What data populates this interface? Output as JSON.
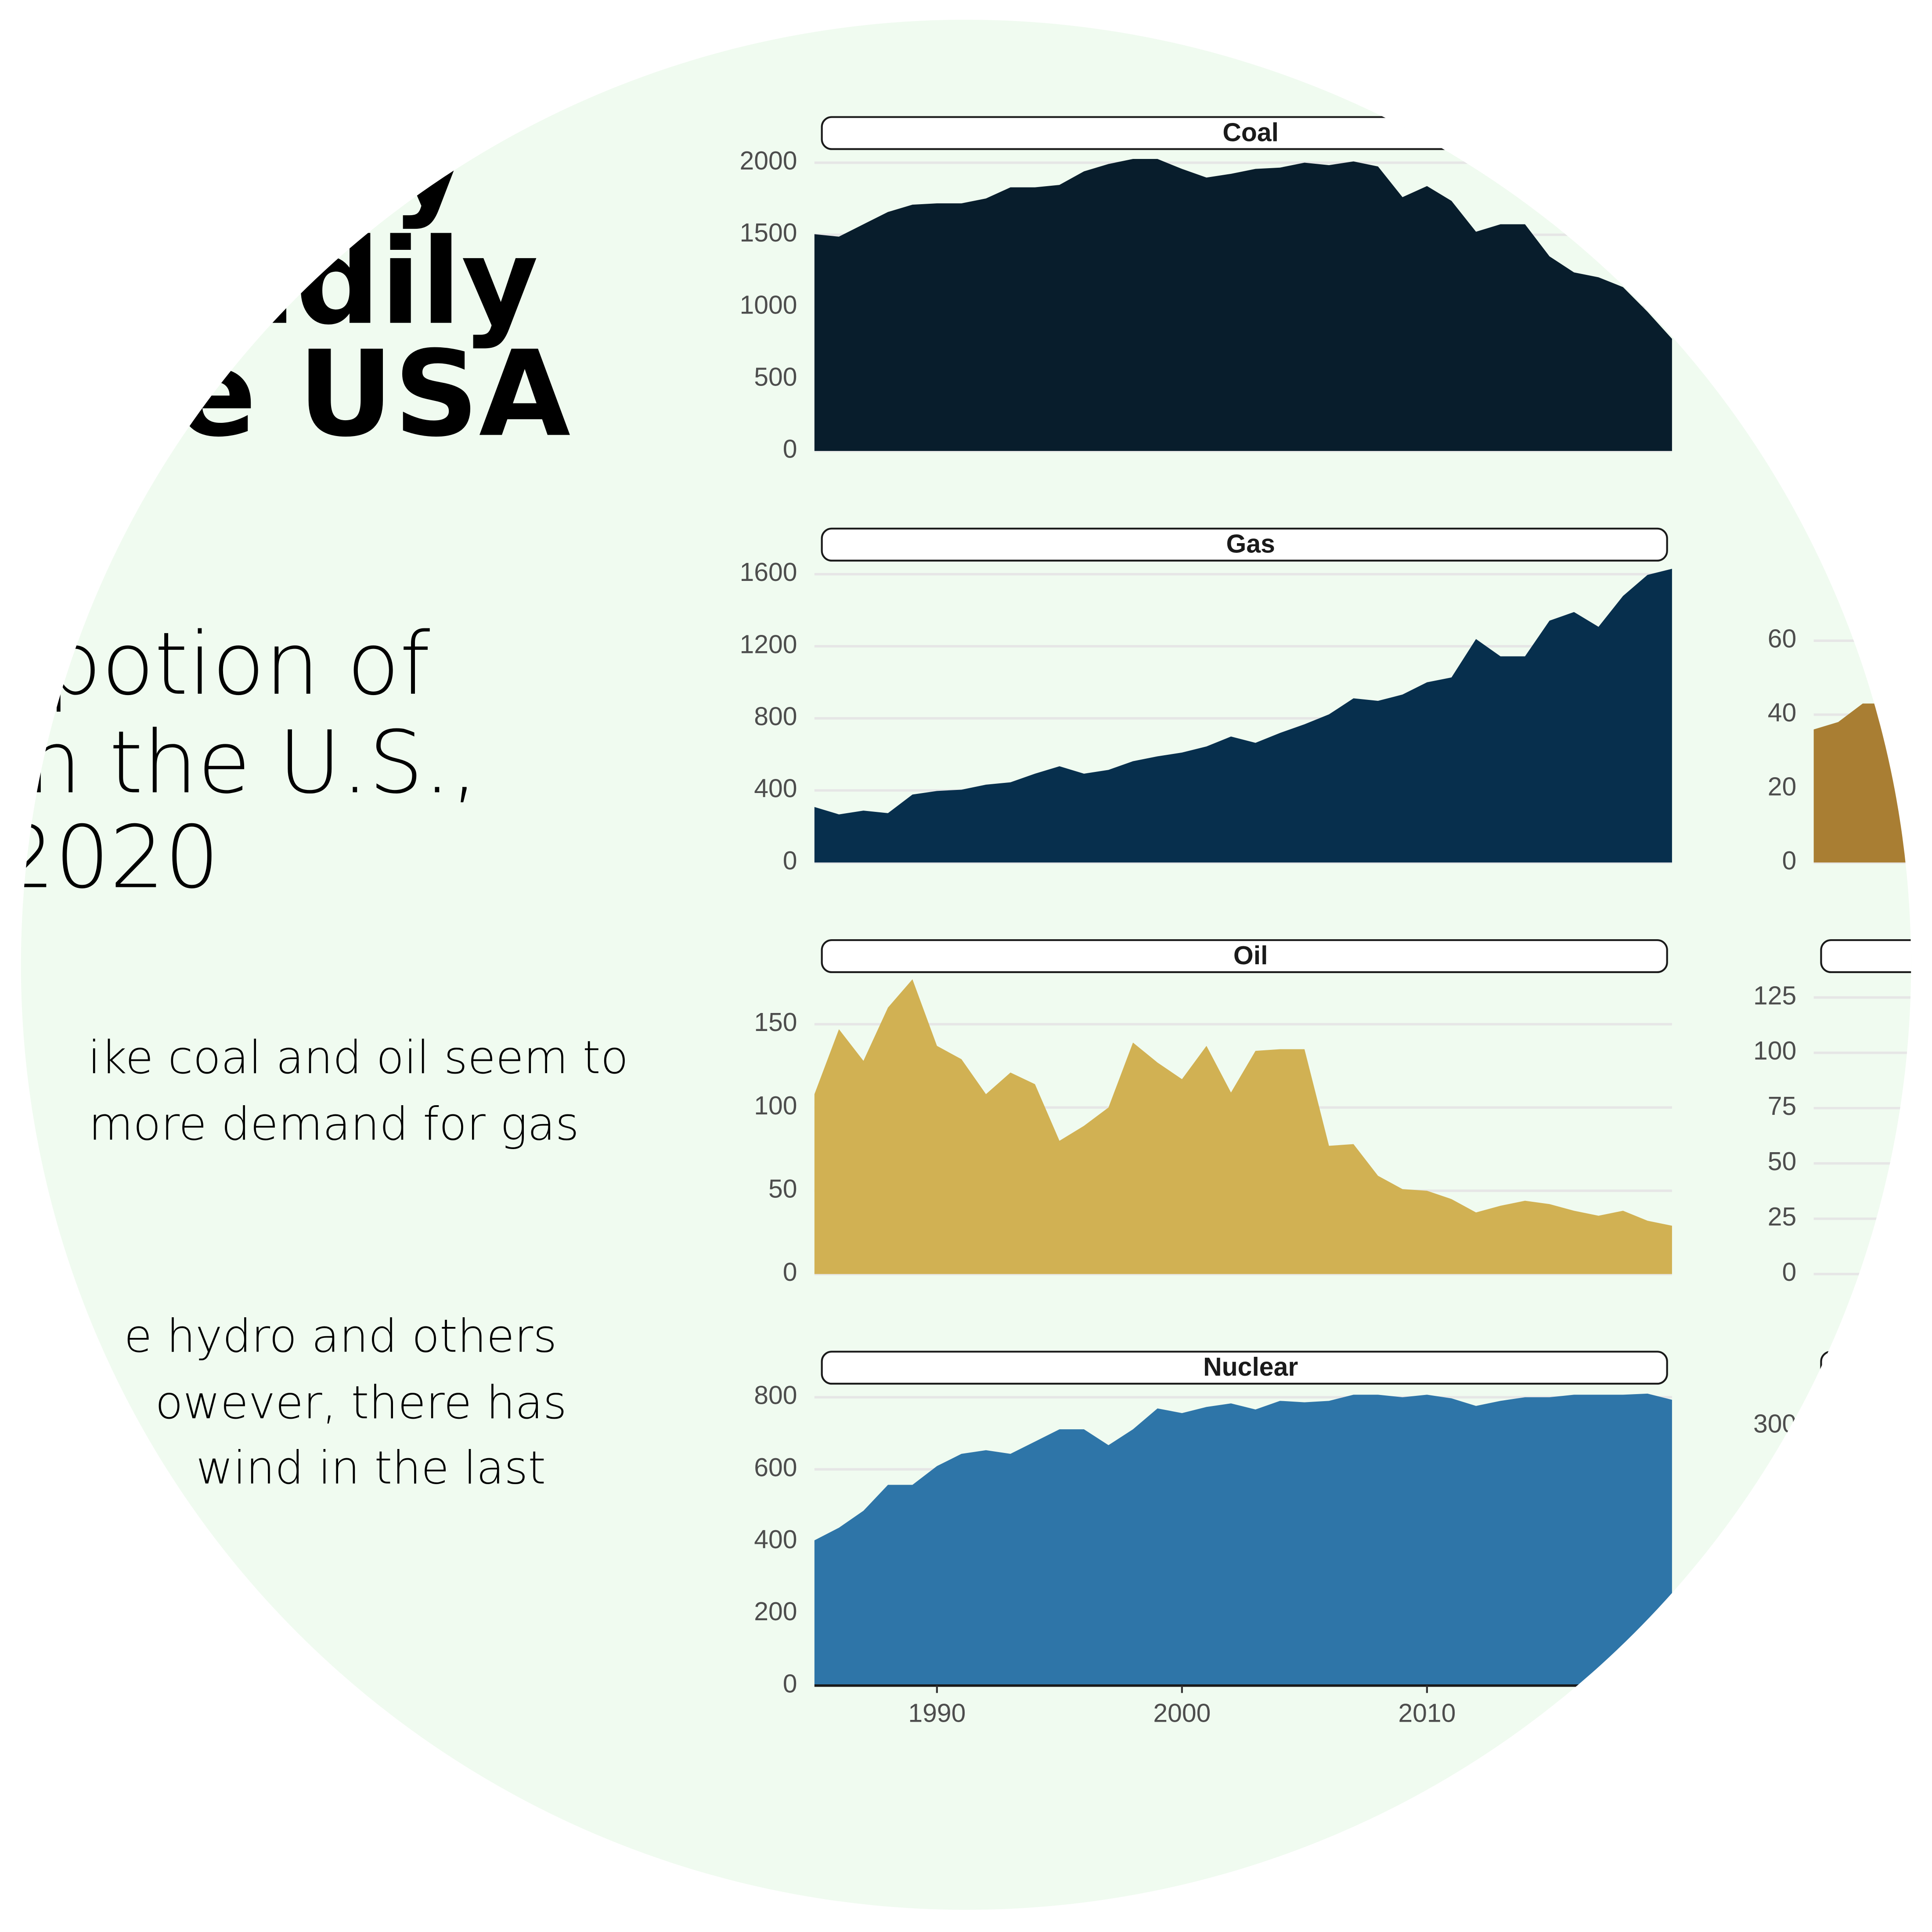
{
  "poster": {
    "title_lines": [
      "y",
      "eadily",
      "he USA"
    ],
    "subtitle_lines": [
      "potion of",
      "n the U.S.,",
      "2020"
    ],
    "body_lines": [
      "ike coal and oil seem to",
      "more demand for gas",
      "e hydro and others",
      "owever, there has",
      "wind in the last"
    ]
  },
  "chart_data": [
    {
      "type": "area",
      "title": "Coal",
      "color": "#081d2c",
      "x": [
        1985,
        1986,
        1987,
        1988,
        1989,
        1990,
        1991,
        1992,
        1993,
        1994,
        1995,
        1996,
        1997,
        1998,
        1999,
        2000,
        2001,
        2002,
        2003,
        2004,
        2005,
        2006,
        2007,
        2008,
        2009,
        2010,
        2011,
        2012,
        2013,
        2014,
        2015,
        2016,
        2017,
        2018,
        2019,
        2020
      ],
      "values": [
        1504,
        1487,
        1573,
        1658,
        1709,
        1718,
        1718,
        1752,
        1829,
        1829,
        1846,
        1940,
        1991,
        2026,
        2026,
        1957,
        1897,
        1923,
        1957,
        1966,
        2000,
        1983,
        2009,
        1974,
        1761,
        1838,
        1735,
        1521,
        1573,
        1573,
        1350,
        1239,
        1205,
        1137,
        966,
        778
      ],
      "xlim": [
        1985,
        2020
      ],
      "ylim": [
        0,
        2103
      ],
      "yticks": [
        0,
        500,
        1000,
        1500,
        2000
      ],
      "grid": true
    },
    {
      "type": "area",
      "title": "Gas",
      "color": "#072f4d",
      "x": [
        1985,
        1986,
        1987,
        1988,
        1989,
        1990,
        1991,
        1992,
        1993,
        1994,
        1995,
        1996,
        1997,
        1998,
        1999,
        2000,
        2001,
        2002,
        2003,
        2004,
        2005,
        2006,
        2007,
        2008,
        2009,
        2010,
        2011,
        2012,
        2013,
        2014,
        2015,
        2016,
        2017,
        2018,
        2019,
        2020
      ],
      "values": [
        308,
        267,
        288,
        274,
        377,
        397,
        404,
        432,
        445,
        493,
        534,
        493,
        514,
        562,
        589,
        610,
        644,
        699,
        664,
        719,
        767,
        822,
        911,
        897,
        932,
        1000,
        1027,
        1240,
        1144,
        1144,
        1342,
        1390,
        1308,
        1479,
        1596,
        1630
      ],
      "xlim": [
        1985,
        2020
      ],
      "ylim": [
        0,
        1682
      ],
      "yticks": [
        0,
        400,
        800,
        1200,
        1600
      ],
      "grid": true
    },
    {
      "type": "area",
      "title": "Oil",
      "color": "#d1b153",
      "x": [
        1985,
        1986,
        1987,
        1988,
        1989,
        1990,
        1991,
        1992,
        1993,
        1994,
        1995,
        1996,
        1997,
        1998,
        1999,
        2000,
        2001,
        2002,
        2003,
        2004,
        2005,
        2006,
        2007,
        2008,
        2009,
        2010,
        2011,
        2012,
        2013,
        2014,
        2015,
        2016,
        2017,
        2018,
        2019,
        2020
      ],
      "values": [
        108,
        147,
        128,
        160,
        177,
        137,
        129,
        108,
        121,
        114,
        80,
        89,
        100,
        139,
        127,
        117,
        137,
        109,
        134,
        135,
        135,
        77,
        78,
        59,
        51,
        50,
        45,
        37,
        41,
        44,
        42,
        38,
        35,
        38,
        32,
        29
      ],
      "xlim": [
        1985,
        2020
      ],
      "ylim": [
        0,
        182
      ],
      "yticks": [
        0,
        50,
        100,
        150
      ],
      "grid": true
    },
    {
      "type": "area",
      "title": "Nuclear",
      "color": "#2e75a8",
      "x": [
        1985,
        1986,
        1987,
        1988,
        1989,
        1990,
        1991,
        1992,
        1993,
        1994,
        1995,
        1996,
        1997,
        1998,
        1999,
        2000,
        2001,
        2002,
        2003,
        2004,
        2005,
        2006,
        2007,
        2008,
        2009,
        2010,
        2011,
        2012,
        2013,
        2014,
        2015,
        2016,
        2017,
        2018,
        2019,
        2020
      ],
      "values": [
        403,
        438,
        485,
        557,
        557,
        609,
        643,
        653,
        643,
        677,
        711,
        711,
        667,
        711,
        769,
        756,
        773,
        783,
        766,
        790,
        786,
        790,
        807,
        807,
        800,
        807,
        797,
        776,
        790,
        800,
        800,
        807,
        807,
        807,
        810,
        793
      ],
      "xlim": [
        1985,
        2020
      ],
      "ylim": [
        0,
        841
      ],
      "yticks": [
        0,
        200,
        400,
        600,
        800
      ],
      "xticks": [
        1990,
        2000,
        2010
      ],
      "grid": true
    },
    {
      "type": "area",
      "color": "#a97e33",
      "x": [
        1985,
        1986,
        1987,
        1988,
        1989
      ],
      "values": [
        36,
        38,
        43,
        43,
        45
      ],
      "xlim": [
        1985,
        2020
      ],
      "ylim": [
        0,
        82
      ],
      "yticks": [
        0,
        20,
        40,
        60
      ],
      "grid": true
    },
    {
      "type": "area",
      "color": "#a97e33",
      "x": [],
      "values": [],
      "xlim": [
        1985,
        2020
      ],
      "ylim": [
        0,
        137
      ],
      "yticks": [
        0,
        25,
        50,
        75,
        100,
        125
      ],
      "grid": true
    },
    {
      "type": "area",
      "color": "#a97e33",
      "x": [],
      "values": [],
      "xlim": [
        1985,
        2020
      ],
      "ylim": [
        0,
        350
      ],
      "yticks": [
        300
      ],
      "grid": true
    }
  ]
}
